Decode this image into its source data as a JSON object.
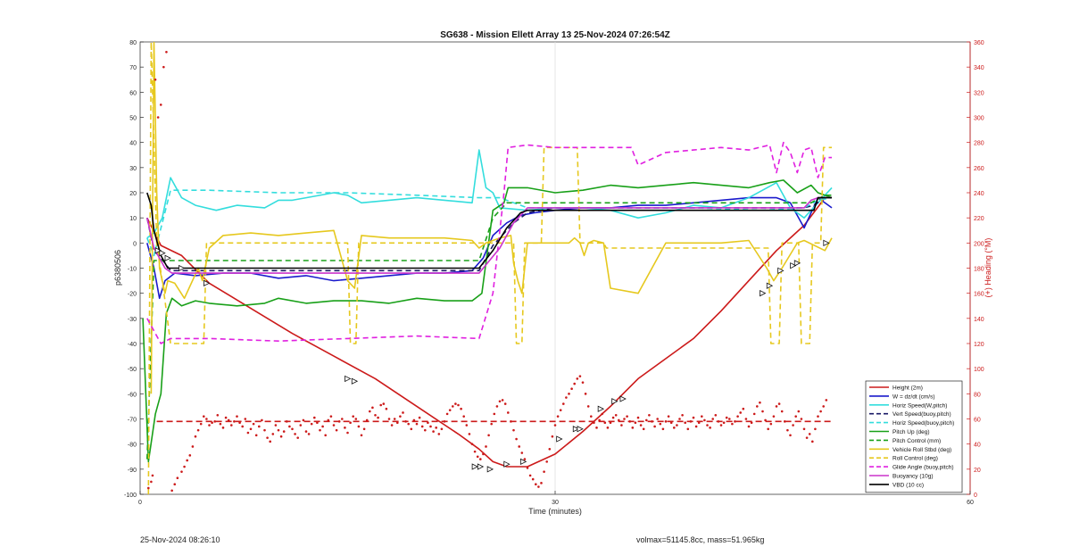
{
  "chart_data": {
    "type": "line",
    "title": "SG638 - Mission Ellett Array 13 25-Nov-2024 07:26:54Z",
    "xlabel": "Time (minutes)",
    "ylabel": "p6380506",
    "y2label": "(+) Heading (°M)",
    "xlim": [
      0,
      60
    ],
    "ylim": [
      -100,
      80
    ],
    "y2lim": [
      0,
      360
    ],
    "xticks": [
      0,
      30,
      60
    ],
    "yticks": [
      -100,
      -90,
      -80,
      -70,
      -60,
      -50,
      -40,
      -30,
      -20,
      -10,
      0,
      10,
      20,
      30,
      40,
      50,
      60,
      70,
      80
    ],
    "y2ticks": [
      0,
      20,
      40,
      60,
      80,
      100,
      120,
      140,
      160,
      180,
      200,
      220,
      240,
      260,
      280,
      300,
      320,
      340,
      360
    ],
    "grid": "x-at-30",
    "legend_position": "bottom-right",
    "series": [
      {
        "name": "Height (2m)",
        "color": "#cc1a1a",
        "style": "solid",
        "x": [
          0.5,
          1.5,
          3,
          5,
          8,
          11,
          14,
          17,
          20,
          23,
          24.5,
          25.5,
          26.5,
          28,
          30,
          32,
          34,
          36,
          38,
          40,
          42,
          44,
          46,
          48,
          49.5
        ],
        "y": [
          10,
          -1,
          -5,
          -16,
          -26,
          -36,
          -45,
          -54,
          -65,
          -76,
          -82,
          -87,
          -89,
          -89,
          -84,
          -75,
          -65,
          -54,
          -46,
          -38,
          -27,
          -15,
          -3,
          7,
          18
        ]
      },
      {
        "name": "W = dz/dt (cm/s)",
        "color": "#1a1acc",
        "style": "solid",
        "x": [
          0.5,
          1,
          1.4,
          1.8,
          2.5,
          4,
          6,
          8,
          10,
          12,
          14,
          16,
          18,
          20,
          22,
          24,
          24.8,
          25.5,
          26.5,
          27.5,
          28.5,
          30,
          32,
          34,
          36,
          38,
          40,
          42,
          44,
          46,
          47,
          48,
          49,
          50
        ],
        "y": [
          0,
          -10,
          -22,
          -15,
          -12,
          -13,
          -12,
          -12,
          -14,
          -13,
          -15,
          -14,
          -13,
          -12,
          -12,
          -11,
          -6,
          3,
          8,
          11,
          12,
          13,
          14,
          14,
          15,
          15,
          16,
          17,
          18,
          18,
          16,
          6,
          18,
          14
        ]
      },
      {
        "name": "Horiz Speed(W,pitch)",
        "color": "#33dddd",
        "style": "solid",
        "x": [
          0.5,
          1,
          1.6,
          2.2,
          3,
          4,
          5.5,
          7,
          9,
          10,
          11,
          12,
          14,
          15,
          16,
          18,
          20,
          22,
          24,
          24.5,
          25,
          25.5,
          26,
          28,
          30,
          32,
          34,
          36,
          38,
          40,
          42,
          44,
          46,
          47,
          48,
          49,
          50
        ],
        "y": [
          2,
          4,
          10,
          26,
          18,
          15,
          13,
          15,
          14,
          17,
          17,
          18,
          20,
          19,
          16,
          17,
          18,
          17,
          16,
          37,
          22,
          20,
          14,
          13,
          14,
          14,
          13,
          10,
          12,
          15,
          14,
          18,
          24,
          14,
          10,
          16,
          22
        ]
      },
      {
        "name": "Vert Speed(buoy,pitch)",
        "color": "#1a1a66",
        "style": "dashed",
        "x": [
          0.5,
          1,
          1.8,
          2.2,
          10,
          20,
          24.5,
          25.5,
          27,
          28,
          30,
          40,
          48,
          48.7,
          49.5,
          50
        ],
        "y": [
          10,
          -3,
          -8,
          -11,
          -11,
          -11,
          -11,
          -1,
          8,
          12,
          14,
          14,
          14,
          15,
          18,
          18
        ]
      },
      {
        "name": "Horiz Speed(buoy,pitch)",
        "color": "#33dddd",
        "style": "dashed",
        "x": [
          0.5,
          1,
          2.2,
          5,
          10,
          15,
          20,
          24.5,
          26,
          28,
          30,
          40,
          45,
          48,
          49,
          50
        ],
        "y": [
          2,
          -5,
          21,
          21,
          20,
          20,
          19,
          18,
          18,
          14,
          14,
          14,
          13,
          14,
          17,
          18
        ]
      },
      {
        "name": "Pitch Up (deg)",
        "color": "#18a018",
        "style": "solid",
        "x": [
          0.2,
          0.6,
          1.1,
          1.5,
          1.9,
          2.3,
          3,
          4,
          5,
          7,
          9,
          10,
          12,
          14,
          16,
          18,
          20,
          22,
          24,
          24.7,
          25.5,
          26.3,
          26.6,
          28,
          30,
          32,
          34,
          36,
          38,
          40,
          42,
          44,
          45.5,
          46.5,
          47.5,
          48.5,
          49,
          50
        ],
        "y": [
          -30,
          -87,
          -68,
          -60,
          -28,
          -22,
          -25,
          -23,
          -24,
          -25,
          -24,
          -22,
          -24,
          -23,
          -23,
          -24,
          -22,
          -23,
          -23,
          -20,
          13,
          16,
          22,
          22,
          20,
          21,
          23,
          22,
          23,
          24,
          23,
          22,
          24,
          25,
          20,
          23,
          20,
          18
        ]
      },
      {
        "name": "Pitch Control (mm)",
        "color": "#18a018",
        "style": "dashed",
        "x": [
          0.5,
          1,
          2.2,
          10,
          20,
          24.5,
          25.5,
          26.5,
          35,
          45,
          48.5,
          49.5,
          50
        ],
        "y": [
          -86,
          -7,
          -7,
          -7,
          -7,
          -7,
          10,
          16,
          16,
          16,
          16,
          19,
          19
        ]
      },
      {
        "name": "Vehicle Roll Stbd (deg)",
        "color": "#e6c81e",
        "style": "solid",
        "x": [
          0.8,
          1.0,
          1.2,
          1.4,
          1.6,
          1.8,
          2,
          2.5,
          3.2,
          4.2,
          4.5,
          5,
          6,
          8,
          10,
          12,
          14,
          15,
          15.5,
          16,
          18,
          20,
          22,
          24,
          24.5,
          25,
          26,
          26.8,
          27,
          27.3,
          27.6,
          28,
          30,
          31,
          31.4,
          31.8,
          32.1,
          32.4,
          32.8,
          33.5,
          34,
          36,
          38,
          40,
          42,
          44,
          45.3,
          45.8,
          46.4,
          47.5,
          48,
          49.5,
          50
        ],
        "y": [
          -60,
          80,
          20,
          -10,
          -15,
          -20,
          -15,
          -16,
          -22,
          -10,
          -15,
          -2,
          3,
          4,
          3,
          4,
          5,
          -15,
          -18,
          3,
          2,
          2,
          2,
          1,
          -2,
          0,
          2,
          3,
          -8,
          -15,
          -20,
          0,
          0,
          0,
          2,
          0,
          -5,
          0,
          1,
          0,
          -18,
          -20,
          0,
          0,
          0,
          1,
          -10,
          -15,
          -10,
          0,
          1,
          -3,
          2
        ]
      },
      {
        "name": "Roll Control (deg)",
        "color": "#e6c81e",
        "style": "dashed",
        "x": [
          0.6,
          0.8,
          1.2,
          1.8,
          2.2,
          3.5,
          4.6,
          4.8,
          15,
          15.2,
          15.6,
          15.8,
          24.8,
          25,
          26.5,
          27,
          27.2,
          27.6,
          27.8,
          29,
          29.2,
          31.6,
          31.8,
          33.5,
          33.7,
          35,
          35.2,
          45.4,
          45.6,
          46.2,
          46.4,
          47.6,
          47.8,
          48.4,
          48.6,
          49.2,
          49.4,
          50
        ],
        "y": [
          -100,
          80,
          0,
          -23,
          -40,
          -40,
          -40,
          0,
          0,
          -40,
          -40,
          0,
          0,
          0,
          0,
          0,
          -40,
          -40,
          0,
          0,
          38,
          38,
          0,
          0,
          -2,
          -2,
          -2,
          -2,
          -40,
          -40,
          0,
          0,
          -40,
          -40,
          0,
          0,
          38,
          38
        ]
      },
      {
        "name": "Glide Angle (buoy,pitch)",
        "color": "#e020e0",
        "style": "dashed",
        "x": [
          0.5,
          1.5,
          2.2,
          2.5,
          5,
          10,
          15,
          20,
          24.5,
          25.5,
          26.3,
          26.6,
          28,
          30,
          32,
          34,
          35.5,
          36,
          38,
          40,
          42,
          44,
          45.5,
          46,
          46.5,
          47,
          47.5,
          48,
          48.5,
          49,
          49.5,
          50
        ],
        "y": [
          -30,
          -40,
          -38,
          -38,
          -38,
          -39,
          -38,
          -37,
          -38,
          -20,
          20,
          38,
          39,
          38,
          38,
          38,
          38,
          31,
          36,
          37,
          38,
          37,
          39,
          28,
          40,
          36,
          28,
          37,
          38,
          26,
          34,
          34
        ]
      },
      {
        "name": "Buoyancy (10g)",
        "color": "#cc33cc",
        "style": "solid",
        "x": [
          0.5,
          1,
          1.8,
          2.3,
          10,
          20,
          24.5,
          26,
          27,
          28,
          30,
          40,
          48,
          48.5,
          49,
          50
        ],
        "y": [
          10,
          -2,
          -10,
          -12,
          -12,
          -12,
          -12,
          -2,
          8,
          14,
          14,
          14,
          14,
          17,
          18,
          18
        ]
      },
      {
        "name": "VBD (10 cc)",
        "color": "#000000",
        "style": "solid",
        "x": [
          0.5,
          0.8,
          1,
          1.5,
          2,
          2.3,
          10,
          20,
          24.5,
          25.5,
          26.5,
          27.5,
          28,
          30,
          40,
          48,
          48.7,
          49,
          50
        ],
        "y": [
          20,
          15,
          5,
          -5,
          -10,
          -10,
          -10,
          -10,
          -10,
          -3,
          6,
          12,
          13,
          13,
          13,
          13,
          13,
          18,
          18
        ]
      }
    ],
    "heading_mean": 58,
    "heading_color": "#cc1a1a",
    "heading_points_x": [
      0.6,
      0.8,
      0.9,
      1.1,
      1.3,
      1.5,
      1.7,
      1.9,
      2.3,
      2.5,
      2.7,
      3.0,
      3.2,
      3.4,
      3.6,
      3.8,
      4.0,
      4.2,
      4.4,
      4.6,
      4.8,
      5.0,
      5.2,
      5.4,
      5.6,
      5.8,
      6.0,
      6.2,
      6.4,
      6.6,
      6.8,
      7.0,
      7.2,
      7.4,
      7.6,
      7.8,
      8.0,
      8.2,
      8.4,
      8.6,
      8.8,
      9.0,
      9.2,
      9.4,
      9.6,
      9.8,
      10.0,
      10.2,
      10.4,
      10.6,
      10.8,
      11.0,
      11.2,
      11.4,
      11.6,
      11.8,
      12.0,
      12.2,
      12.4,
      12.6,
      12.8,
      13.0,
      13.2,
      13.4,
      13.6,
      13.8,
      14.0,
      14.2,
      14.4,
      14.6,
      14.8,
      15.0,
      15.2,
      15.4,
      15.6,
      15.8,
      16.0,
      16.2,
      16.4,
      16.6,
      16.8,
      17.0,
      17.2,
      17.4,
      17.6,
      17.8,
      18.0,
      18.2,
      18.4,
      18.6,
      18.8,
      19.0,
      19.2,
      19.4,
      19.6,
      19.8,
      20.0,
      20.2,
      20.4,
      20.6,
      20.8,
      21.0,
      21.2,
      21.4,
      21.6,
      21.8,
      22.0,
      22.2,
      22.4,
      22.6,
      22.8,
      23.0,
      23.2,
      23.4,
      23.6,
      23.8,
      24.0,
      24.2,
      24.4,
      24.6,
      24.8,
      25.0,
      25.2,
      25.4,
      25.6,
      25.8,
      26.0,
      26.2,
      26.4,
      26.6,
      26.8,
      27.0,
      27.2,
      27.4,
      27.6,
      27.8,
      28.0,
      28.2,
      28.4,
      28.6,
      28.8,
      29.0,
      29.2,
      29.4,
      29.6,
      29.8,
      30.0,
      30.2,
      30.4,
      30.6,
      30.8,
      31.0,
      31.2,
      31.4,
      31.6,
      31.8,
      32.0,
      32.2,
      32.4,
      32.6,
      32.8,
      33.0,
      33.2,
      33.4,
      33.6,
      33.8,
      34.0,
      34.2,
      34.4,
      34.6,
      34.8,
      35.0,
      35.2,
      35.4,
      35.6,
      35.8,
      36.0,
      36.2,
      36.4,
      36.6,
      36.8,
      37.0,
      37.2,
      37.4,
      37.6,
      37.8,
      38.0,
      38.2,
      38.4,
      38.6,
      38.8,
      39.0,
      39.2,
      39.4,
      39.6,
      39.8,
      40.0,
      40.2,
      40.4,
      40.6,
      40.8,
      41.0,
      41.2,
      41.4,
      41.6,
      41.8,
      42.0,
      42.2,
      42.4,
      42.6,
      42.8,
      43.0,
      43.2,
      43.4,
      43.6,
      43.8,
      44.0,
      44.2,
      44.4,
      44.6,
      44.8,
      45.0,
      45.2,
      45.4,
      45.6,
      45.8,
      46.0,
      46.2,
      46.4,
      46.6,
      46.8,
      47.0,
      47.2,
      47.4,
      47.6,
      47.8,
      48.0,
      48.2,
      48.4,
      48.6,
      48.8,
      49.0,
      49.2,
      49.4,
      49.6,
      49.8
    ],
    "heading_points_y": [
      5,
      10,
      15,
      330,
      300,
      310,
      340,
      352,
      3,
      8,
      13,
      18,
      22,
      27,
      31,
      38,
      46,
      51,
      56,
      62,
      60,
      55,
      57,
      58,
      63,
      56,
      53,
      61,
      59,
      55,
      58,
      62,
      57,
      54,
      60,
      49,
      52,
      56,
      47,
      54,
      59,
      51,
      45,
      42,
      48,
      55,
      51,
      46,
      50,
      58,
      54,
      52,
      48,
      45,
      55,
      59,
      50,
      48,
      56,
      61,
      57,
      51,
      54,
      47,
      59,
      62,
      55,
      51,
      58,
      60,
      53,
      49,
      57,
      62,
      60,
      54,
      47,
      52,
      59,
      66,
      69,
      63,
      61,
      71,
      72,
      68,
      60,
      55,
      60,
      57,
      62,
      65,
      58,
      56,
      52,
      59,
      56,
      61,
      54,
      51,
      57,
      54,
      50,
      53,
      48,
      52,
      58,
      64,
      67,
      70,
      72,
      71,
      68,
      62,
      55,
      48,
      40,
      34,
      30,
      28,
      32,
      38,
      47,
      56,
      64,
      70,
      74,
      75,
      72,
      65,
      58,
      51,
      44,
      38,
      33,
      28,
      21,
      15,
      12,
      8,
      6,
      9,
      18,
      26,
      36,
      46,
      55,
      62,
      67,
      72,
      77,
      80,
      84,
      88,
      92,
      94,
      89,
      80,
      70,
      62,
      57,
      53,
      59,
      64,
      57,
      53,
      57,
      61,
      63,
      59,
      55,
      60,
      62,
      58,
      53,
      57,
      61,
      55,
      52,
      59,
      63,
      58,
      54,
      60,
      56,
      52,
      58,
      62,
      57,
      53,
      55,
      60,
      63,
      57,
      52,
      58,
      61,
      54,
      57,
      62,
      59,
      55,
      53,
      60,
      63,
      58,
      55,
      57,
      61,
      60,
      56,
      58,
      62,
      65,
      68,
      60,
      54,
      57,
      64,
      70,
      73,
      66,
      59,
      52,
      56,
      62,
      70,
      72,
      66,
      58,
      51,
      47,
      55,
      62,
      66,
      60,
      52,
      45,
      48,
      42,
      52,
      62,
      66,
      70,
      75
    ],
    "event_markers_x": [
      1.3,
      1.6,
      2.0,
      3.0,
      4.8,
      15.0,
      15.5,
      24.2,
      24.6,
      25.3,
      26.5,
      27.7,
      30.3,
      31.5,
      31.8,
      33.3,
      34.3,
      34.9,
      45.0,
      45.5,
      46.3,
      47.2,
      47.5,
      49.6
    ],
    "event_markers_y": [
      -3,
      -4,
      -6,
      -10,
      -16,
      -54,
      -55,
      -89,
      -89,
      -90,
      -88,
      -87,
      -78,
      -74,
      -74,
      -66,
      -63,
      -62,
      -20,
      -17,
      -11,
      -9,
      -8,
      0
    ]
  },
  "footer": {
    "left": "25-Nov-2024 08:26:10",
    "right": "volmax=51145.8cc, mass=51.965kg"
  }
}
